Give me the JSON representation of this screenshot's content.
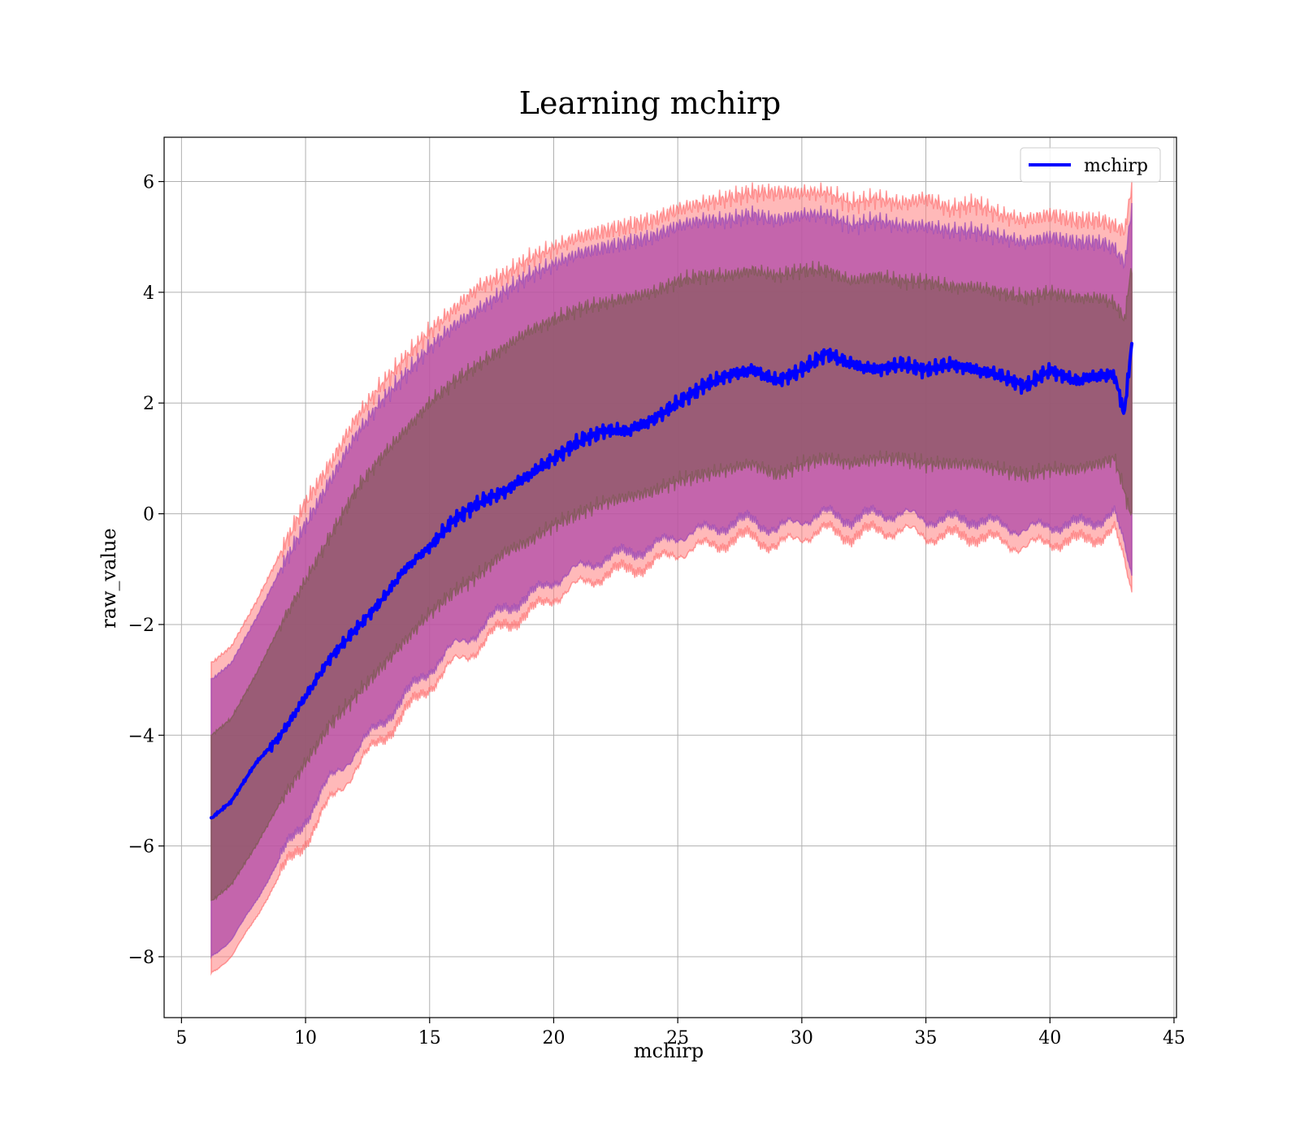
{
  "chart_data": {
    "type": "line",
    "title": "Learning mchirp",
    "xlabel": "mchirp",
    "ylabel": "raw_value",
    "xlim": [
      4.3,
      45.1
    ],
    "ylim": [
      -9.1,
      6.8
    ],
    "xticks": [
      5,
      10,
      15,
      20,
      25,
      30,
      35,
      40,
      45
    ],
    "yticks": [
      -8,
      -6,
      -4,
      -2,
      0,
      2,
      4,
      6
    ],
    "ytick_labels": [
      "−8",
      "−6",
      "−4",
      "−2",
      "0",
      "2",
      "4",
      "6"
    ],
    "grid": true,
    "legend": {
      "placement": "top-right",
      "entries": [
        "mchirp"
      ]
    },
    "colors": {
      "line": "#0000ff",
      "band_outer": "#ff8080",
      "band_mid": "#b04aa8",
      "band_inner": "#8c5a64",
      "grid": "#b0b0b0"
    },
    "series": [
      {
        "name": "mchirp",
        "x": [
          6.2,
          7.0,
          8.0,
          9.0,
          10.0,
          11.0,
          12.0,
          13.0,
          14.0,
          15.0,
          16.0,
          17.0,
          18.0,
          19.0,
          20.0,
          21.0,
          22.0,
          23.0,
          24.0,
          25.0,
          26.0,
          27.0,
          28.0,
          29.0,
          30.0,
          31.0,
          32.0,
          33.0,
          34.0,
          35.0,
          36.0,
          37.0,
          38.0,
          39.0,
          40.0,
          41.0,
          42.0,
          42.6,
          43.0,
          43.3
        ],
        "y": [
          -5.5,
          -5.2,
          -4.5,
          -4.0,
          -3.3,
          -2.6,
          -2.1,
          -1.6,
          -1.0,
          -0.6,
          -0.1,
          0.2,
          0.4,
          0.7,
          1.0,
          1.3,
          1.5,
          1.5,
          1.7,
          2.0,
          2.3,
          2.5,
          2.6,
          2.4,
          2.6,
          2.9,
          2.7,
          2.6,
          2.7,
          2.6,
          2.7,
          2.6,
          2.5,
          2.3,
          2.6,
          2.4,
          2.5,
          2.5,
          1.8,
          3.1
        ],
        "band_outer_upper": [
          -2.7,
          -2.4,
          -1.6,
          -0.7,
          0.2,
          0.9,
          1.7,
          2.3,
          2.8,
          3.3,
          3.7,
          4.1,
          4.3,
          4.6,
          4.8,
          5.0,
          5.1,
          5.2,
          5.3,
          5.5,
          5.6,
          5.7,
          5.8,
          5.8,
          5.8,
          5.8,
          5.6,
          5.7,
          5.6,
          5.7,
          5.5,
          5.6,
          5.4,
          5.3,
          5.4,
          5.3,
          5.3,
          5.2,
          5.1,
          5.9
        ],
        "band_outer_lower": [
          -8.3,
          -8.0,
          -7.3,
          -6.5,
          -5.9,
          -5.2,
          -4.6,
          -4.1,
          -3.6,
          -3.1,
          -2.7,
          -2.4,
          -2.0,
          -1.8,
          -1.5,
          -1.3,
          -1.1,
          -1.0,
          -0.9,
          -0.7,
          -0.6,
          -0.5,
          -0.4,
          -0.6,
          -0.4,
          -0.3,
          -0.4,
          -0.3,
          -0.3,
          -0.4,
          -0.4,
          -0.4,
          -0.5,
          -0.6,
          -0.5,
          -0.5,
          -0.4,
          -0.3,
          -0.9,
          -1.4
        ],
        "band_mid_upper": [
          -3.0,
          -2.7,
          -1.9,
          -1.0,
          -0.2,
          0.6,
          1.4,
          2.0,
          2.5,
          3.0,
          3.4,
          3.7,
          4.0,
          4.3,
          4.5,
          4.7,
          4.8,
          4.9,
          5.0,
          5.2,
          5.3,
          5.3,
          5.4,
          5.3,
          5.4,
          5.4,
          5.2,
          5.3,
          5.2,
          5.2,
          5.1,
          5.1,
          5.0,
          4.9,
          5.0,
          4.9,
          4.9,
          4.8,
          4.5,
          5.5
        ],
        "band_mid_lower": [
          -8.0,
          -7.7,
          -7.0,
          -6.2,
          -5.5,
          -4.8,
          -4.3,
          -3.8,
          -3.3,
          -2.8,
          -2.4,
          -2.1,
          -1.7,
          -1.5,
          -1.2,
          -1.0,
          -0.8,
          -0.7,
          -0.6,
          -0.4,
          -0.3,
          -0.2,
          -0.1,
          -0.3,
          -0.1,
          0.0,
          -0.1,
          0.0,
          0.0,
          -0.1,
          -0.1,
          -0.1,
          -0.2,
          -0.3,
          -0.2,
          -0.2,
          -0.1,
          0.0,
          -0.6,
          -1.1
        ],
        "band_inner_upper": [
          -4.0,
          -3.7,
          -2.9,
          -2.0,
          -1.2,
          -0.4,
          0.4,
          1.0,
          1.5,
          2.0,
          2.4,
          2.7,
          3.0,
          3.3,
          3.5,
          3.7,
          3.8,
          3.9,
          4.0,
          4.2,
          4.3,
          4.3,
          4.4,
          4.3,
          4.4,
          4.4,
          4.2,
          4.3,
          4.2,
          4.2,
          4.1,
          4.1,
          4.0,
          3.9,
          4.0,
          3.9,
          3.9,
          3.8,
          3.5,
          4.5
        ],
        "band_inner_lower": [
          -7.0,
          -6.7,
          -6.0,
          -5.2,
          -4.5,
          -3.8,
          -3.3,
          -2.8,
          -2.3,
          -1.8,
          -1.4,
          -1.1,
          -0.7,
          -0.5,
          -0.2,
          0.0,
          0.2,
          0.3,
          0.4,
          0.6,
          0.7,
          0.8,
          0.9,
          0.7,
          0.9,
          1.0,
          0.9,
          1.0,
          1.0,
          0.9,
          0.9,
          0.9,
          0.8,
          0.7,
          0.8,
          0.8,
          0.9,
          1.0,
          0.4,
          -0.1
        ]
      }
    ]
  }
}
